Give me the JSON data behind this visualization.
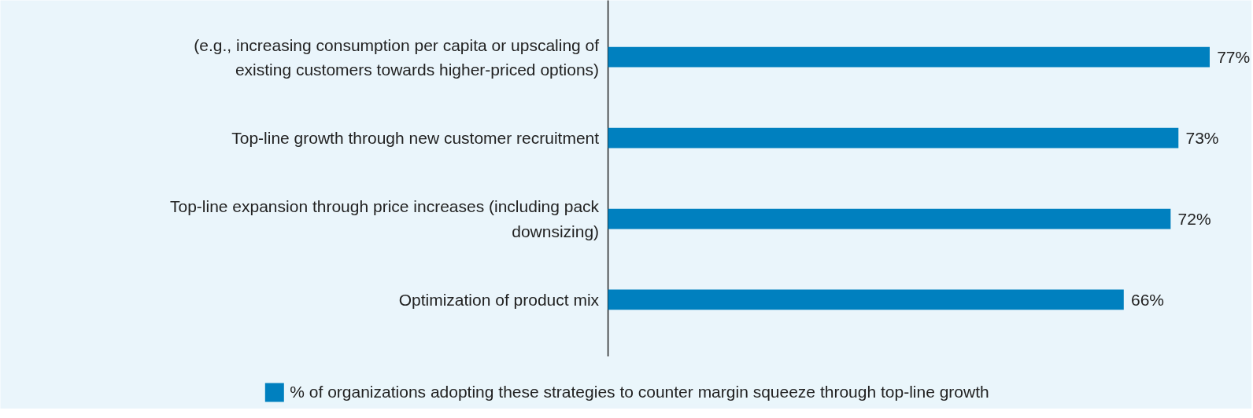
{
  "chart_data": {
    "type": "bar",
    "orientation": "horizontal",
    "categories": [
      "(e.g., increasing consumption per capita or upscaling of existing customers towards higher-priced options)",
      "Top-line growth through new customer recruitment",
      "Top-line expansion through price increases (including pack downsizing)",
      "Optimization of product mix"
    ],
    "series": [
      {
        "name": "% of organizations adopting these strategies to counter margin squeeze through top-line growth",
        "color": "#0080bf",
        "values": [
          77,
          73,
          72,
          66
        ],
        "value_labels": [
          "77%",
          "73%",
          "72%",
          "66%"
        ]
      }
    ],
    "legend": "bottom",
    "grid": false
  }
}
